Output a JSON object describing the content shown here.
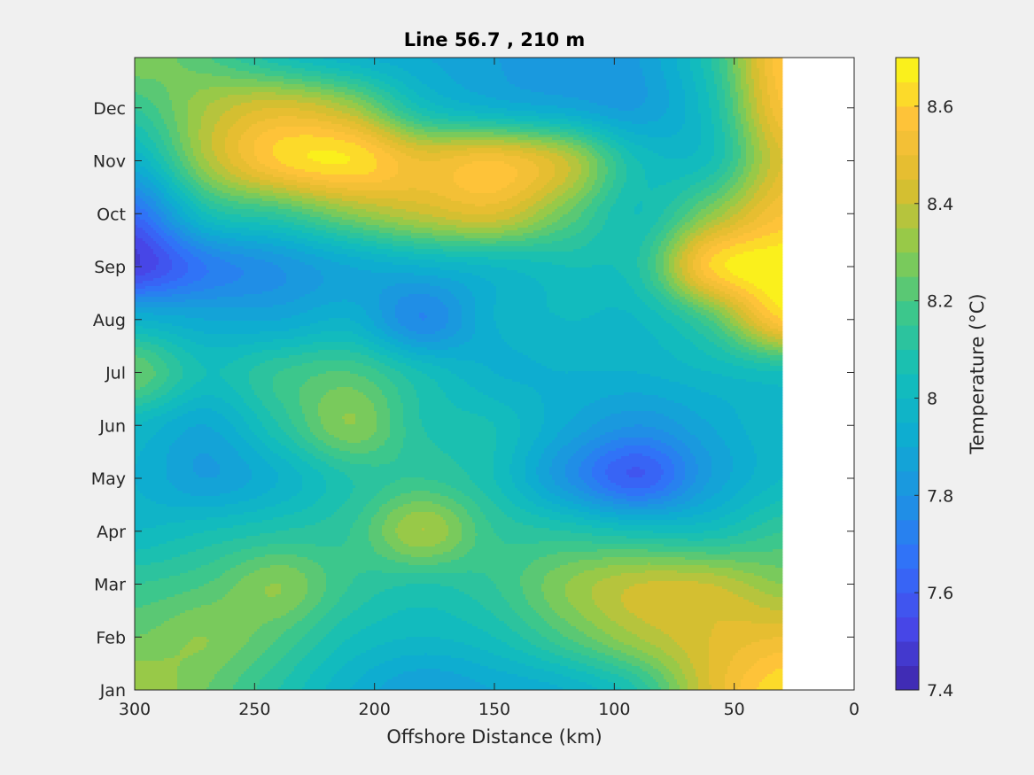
{
  "chart_data": {
    "type": "heatmap",
    "subtype": "filled-contour",
    "title": "Line 56.7 , 210 m",
    "xlabel": "Offshore Distance (km)",
    "ylabel": "",
    "x_direction": "reversed",
    "xlim": [
      0,
      300
    ],
    "x_ticks": [
      300,
      250,
      200,
      150,
      100,
      50,
      0
    ],
    "ylim": [
      1,
      12.95
    ],
    "y_ticks": [
      {
        "value": 1,
        "label": "Jan"
      },
      {
        "value": 2,
        "label": "Feb"
      },
      {
        "value": 3,
        "label": "Mar"
      },
      {
        "value": 4,
        "label": "Apr"
      },
      {
        "value": 5,
        "label": "May"
      },
      {
        "value": 6,
        "label": "Jun"
      },
      {
        "value": 7,
        "label": "Jul"
      },
      {
        "value": 8,
        "label": "Aug"
      },
      {
        "value": 9,
        "label": "Sep"
      },
      {
        "value": 10,
        "label": "Oct"
      },
      {
        "value": 11,
        "label": "Nov"
      },
      {
        "value": 12,
        "label": "Dec"
      }
    ],
    "data_x_range": [
      30,
      300
    ],
    "no_data_region": "0-30 km",
    "colorbar": {
      "label": "Temperature (°C)",
      "range": [
        7.4,
        8.7
      ],
      "ticks": [
        7.4,
        7.6,
        7.8,
        8,
        8.2,
        8.4,
        8.6
      ],
      "levels": 26,
      "colormap": "parula"
    },
    "x_grid": [
      300,
      270,
      240,
      210,
      180,
      150,
      120,
      90,
      60,
      30
    ],
    "y_grid": [
      1,
      2,
      3,
      4,
      5,
      6,
      7,
      8,
      9,
      10,
      11,
      12,
      13
    ],
    "values": [
      [
        8.35,
        8.25,
        8.1,
        7.95,
        7.85,
        7.9,
        7.95,
        8.1,
        8.45,
        8.65
      ],
      [
        8.25,
        8.3,
        8.2,
        8.05,
        8.0,
        8.05,
        8.2,
        8.35,
        8.45,
        8.5
      ],
      [
        8.15,
        8.2,
        8.3,
        8.15,
        8.1,
        8.15,
        8.3,
        8.4,
        8.4,
        8.3
      ],
      [
        8.0,
        8.05,
        8.1,
        8.15,
        8.35,
        8.15,
        8.1,
        8.05,
        8.05,
        8.15
      ],
      [
        7.95,
        7.85,
        7.95,
        8.1,
        8.15,
        8.05,
        7.8,
        7.6,
        7.85,
        8.0
      ],
      [
        8.0,
        7.9,
        8.1,
        8.3,
        8.1,
        8.05,
        7.9,
        7.8,
        7.9,
        8.0
      ],
      [
        8.25,
        8.05,
        8.15,
        8.2,
        8.05,
        7.95,
        7.95,
        7.95,
        8.0,
        8.05
      ],
      [
        7.95,
        7.9,
        7.9,
        7.95,
        7.75,
        7.95,
        8.0,
        8.0,
        8.2,
        8.6
      ],
      [
        7.5,
        7.7,
        7.8,
        7.9,
        7.95,
        8.0,
        8.05,
        8.1,
        8.6,
        8.7
      ],
      [
        7.65,
        8.05,
        8.15,
        8.3,
        8.4,
        8.45,
        8.25,
        8.05,
        8.3,
        8.55
      ],
      [
        7.95,
        8.35,
        8.6,
        8.65,
        8.5,
        8.55,
        8.4,
        8.05,
        8.05,
        8.45
      ],
      [
        8.15,
        8.35,
        8.45,
        8.35,
        8.05,
        7.95,
        7.9,
        7.85,
        8.05,
        8.55
      ],
      [
        8.3,
        8.2,
        8.05,
        7.95,
        7.9,
        7.85,
        7.8,
        7.85,
        8.1,
        8.6
      ]
    ]
  }
}
